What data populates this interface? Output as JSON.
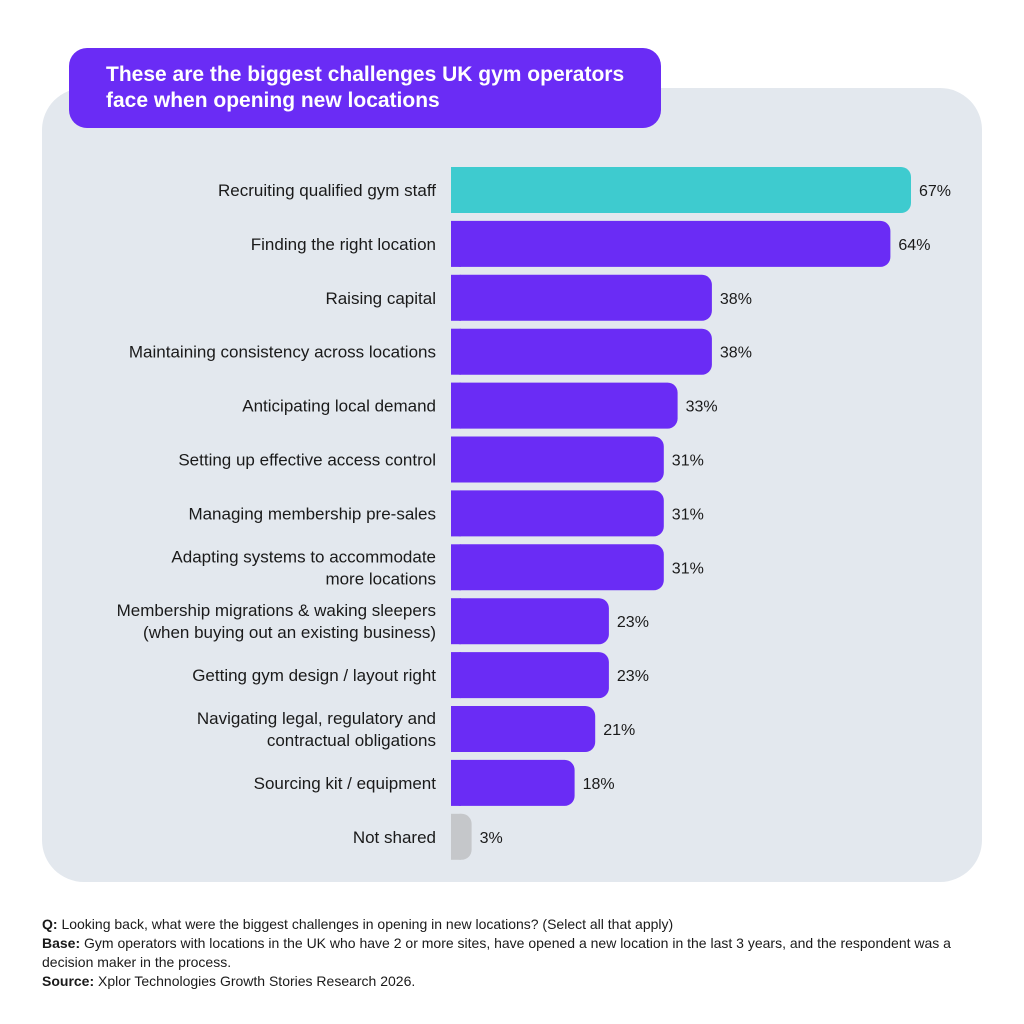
{
  "chart_data": {
    "type": "bar",
    "orientation": "horizontal",
    "title": "These are the biggest challenges UK gym operators face when opening new locations",
    "categories": [
      [
        "Recruiting qualified gym staff"
      ],
      [
        "Finding the right location"
      ],
      [
        "Raising capital"
      ],
      [
        "Maintaining consistency across locations"
      ],
      [
        "Anticipating local demand"
      ],
      [
        "Setting up effective access control"
      ],
      [
        "Managing membership pre-sales"
      ],
      [
        "Adapting systems to accommodate",
        "more locations"
      ],
      [
        "Membership migrations & waking sleepers",
        "(when buying out an existing business)"
      ],
      [
        "Getting gym design / layout right"
      ],
      [
        "Navigating legal, regulatory and",
        "contractual obligations"
      ],
      [
        "Sourcing kit / equipment"
      ],
      [
        "Not shared"
      ]
    ],
    "values": [
      67,
      64,
      38,
      38,
      33,
      31,
      31,
      31,
      23,
      23,
      21,
      18,
      3
    ],
    "value_labels": [
      "67%",
      "64%",
      "38%",
      "38%",
      "33%",
      "31%",
      "31%",
      "31%",
      "23%",
      "23%",
      "21%",
      "18%",
      "3%"
    ],
    "bar_colors": [
      "#3ecbcf",
      "#6a2cf5",
      "#6a2cf5",
      "#6a2cf5",
      "#6a2cf5",
      "#6a2cf5",
      "#6a2cf5",
      "#6a2cf5",
      "#6a2cf5",
      "#6a2cf5",
      "#6a2cf5",
      "#6a2cf5",
      "#c5c7ca"
    ],
    "xlim": [
      0,
      67
    ],
    "grid": false,
    "legend": "none"
  },
  "footnotes": {
    "q_label": "Q:",
    "q_text": " Looking back, what were the biggest challenges in opening in new locations? (Select all that apply)",
    "base_label": "Base:",
    "base_text": " Gym operators with locations in the UK who have 2 or more sites, have opened a new location in the last 3 years, and the respondent was a decision maker in the process.",
    "source_label": "Source:",
    "source_text": " Xplor Technologies Growth Stories Research 2026."
  }
}
